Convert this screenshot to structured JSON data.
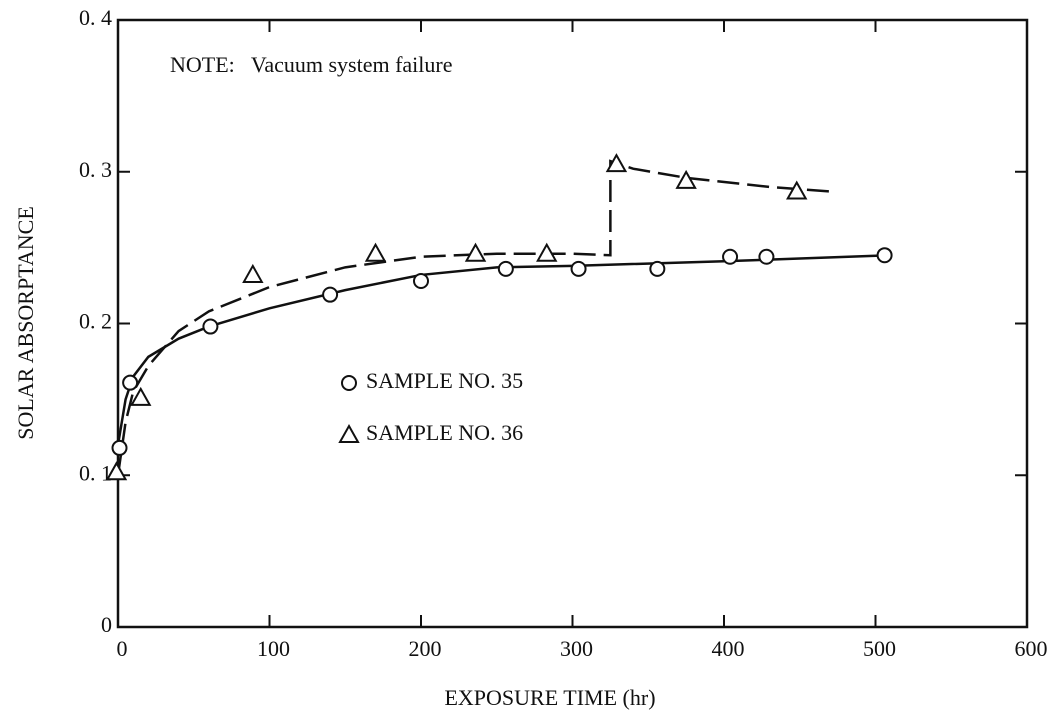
{
  "chart_data": {
    "type": "scatter",
    "xlabel": "EXPOSURE TIME (hr)",
    "ylabel": "SOLAR ABSORPTANCE",
    "annotation": "NOTE:   Vacuum system failure",
    "xlim": [
      0,
      600
    ],
    "ylim": [
      0,
      0.4
    ],
    "xticks": [
      0,
      100,
      200,
      300,
      400,
      500,
      600
    ],
    "yticks": [
      0,
      {
        "value": 0.1,
        "label": "0. 1"
      },
      {
        "value": 0.2,
        "label": "0. 2"
      },
      {
        "value": 0.3,
        "label": "0. 3"
      },
      {
        "value": 0.4,
        "label": "0. 4"
      }
    ],
    "series": [
      {
        "name": "SAMPLE NO. 35",
        "marker": "circle",
        "color": "#111",
        "x": [
          1,
          8,
          61,
          140,
          200,
          256,
          304,
          356,
          404,
          428,
          506
        ],
        "values": [
          0.118,
          0.161,
          0.198,
          0.219,
          0.228,
          0.236,
          0.236,
          0.236,
          0.244,
          0.244,
          0.245
        ]
      },
      {
        "name": "SAMPLE NO. 36",
        "marker": "triangle",
        "color": "#111",
        "x": [
          -1,
          15,
          89,
          170,
          236,
          283,
          329,
          375,
          448
        ],
        "values": [
          0.102,
          0.151,
          0.232,
          0.246,
          0.246,
          0.246,
          0.305,
          0.294,
          0.287
        ]
      }
    ],
    "fit_lines": [
      {
        "style": "solid",
        "x": [
          0,
          5,
          10,
          20,
          40,
          60,
          100,
          150,
          200,
          250,
          300,
          400,
          510
        ],
        "y": [
          0.12,
          0.15,
          0.165,
          0.178,
          0.19,
          0.198,
          0.21,
          0.222,
          0.232,
          0.237,
          0.238,
          0.241,
          0.245
        ]
      },
      {
        "style": "dashed",
        "x": [
          0,
          5,
          10,
          20,
          40,
          60,
          100,
          150,
          200,
          250,
          300,
          325,
          325,
          340,
          375,
          430,
          470
        ],
        "y": [
          0.1,
          0.135,
          0.155,
          0.172,
          0.195,
          0.208,
          0.224,
          0.237,
          0.244,
          0.246,
          0.246,
          0.245,
          0.307,
          0.302,
          0.296,
          0.29,
          0.287
        ]
      }
    ]
  }
}
